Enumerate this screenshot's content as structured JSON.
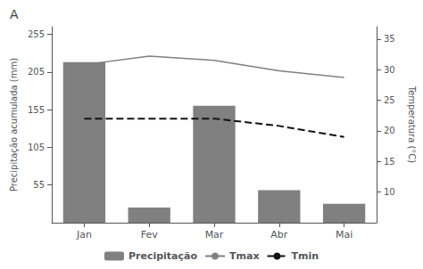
{
  "chart_data": {
    "type": "bar",
    "title": "A",
    "categories": [
      "Jan",
      "Fev",
      "Mar",
      "Abr",
      "Mai"
    ],
    "series": [
      {
        "name": "Precipitação",
        "type": "bar",
        "color": "#808080",
        "values": [
          218,
          25,
          160,
          48,
          30
        ]
      },
      {
        "name": "Tmax",
        "type": "line",
        "axis": "y2",
        "color": "#808080",
        "line_style": "solid",
        "values": [
          30.8,
          32.2,
          31.5,
          29.8,
          28.7
        ]
      },
      {
        "name": "Tmin",
        "type": "line",
        "axis": "y2",
        "color": "#111111",
        "line_style": "dashed",
        "values": [
          22.0,
          22.0,
          22.0,
          20.8,
          19.0
        ]
      }
    ],
    "ylabel": "Precipitação acumulada (mm)",
    "y2label": "Temperatura (°C)",
    "ylim": [
      5,
      265
    ],
    "yticks": [
      55,
      105,
      155,
      205,
      255
    ],
    "y2lim": [
      5,
      37
    ],
    "y2ticks": [
      10,
      15,
      20,
      25,
      30,
      35
    ],
    "grid": false,
    "legend": "bottom"
  }
}
